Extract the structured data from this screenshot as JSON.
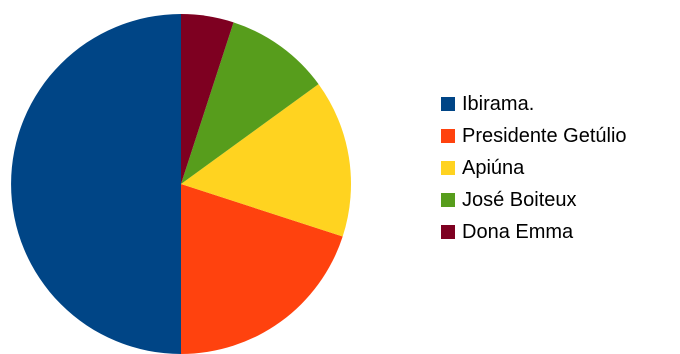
{
  "chart_data": {
    "type": "pie",
    "title": "",
    "categories": [
      "Ibirama.",
      "Presidente Getúlio",
      "Apiúna",
      "José Boiteux",
      "Dona Emma"
    ],
    "values": [
      50,
      20,
      15,
      10,
      5
    ],
    "colors": [
      "#004586",
      "#ff420e",
      "#ffd320",
      "#579d1c",
      "#7e0021"
    ],
    "start_angle_deg": 180,
    "direction": "counter-clockwise",
    "legend_position": "right"
  }
}
